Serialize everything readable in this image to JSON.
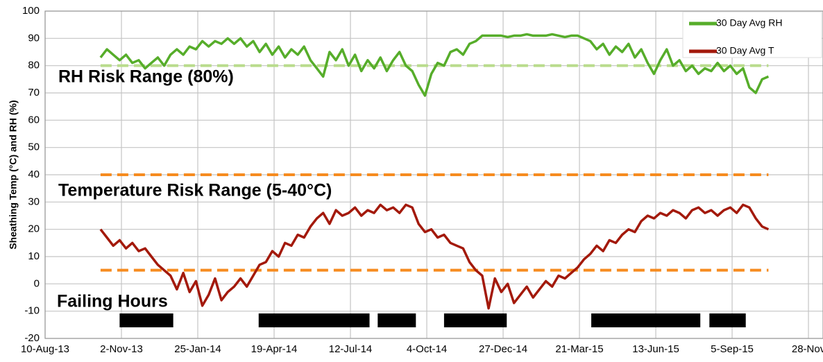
{
  "chart_data": {
    "type": "line",
    "y_label": "Sheathing Temp (°C) and RH (%)",
    "ylim": [
      -20,
      100
    ],
    "yticks": [
      -20,
      -10,
      0,
      10,
      20,
      30,
      40,
      50,
      60,
      70,
      80,
      90,
      100
    ],
    "xlim": [
      "2013-08-10",
      "2015-12-14"
    ],
    "xticks": [
      {
        "value": "2013-08-10",
        "label": "10-Aug-13"
      },
      {
        "value": "2013-11-02",
        "label": "2-Nov-13"
      },
      {
        "value": "2014-01-25",
        "label": "25-Jan-14"
      },
      {
        "value": "2014-04-19",
        "label": "19-Apr-14"
      },
      {
        "value": "2014-07-12",
        "label": "12-Jul-14"
      },
      {
        "value": "2014-10-04",
        "label": "4-Oct-14"
      },
      {
        "value": "2014-12-27",
        "label": "27-Dec-14"
      },
      {
        "value": "2015-03-21",
        "label": "21-Mar-15"
      },
      {
        "value": "2015-06-13",
        "label": "13-Jun-15"
      },
      {
        "value": "2015-09-05",
        "label": "5-Sep-15"
      },
      {
        "value": "2015-11-28",
        "label": "28-Nov"
      }
    ],
    "grid": true,
    "legend": "top-right",
    "x": [
      "2013-10-10",
      "2013-10-17",
      "2013-10-24",
      "2013-10-31",
      "2013-11-07",
      "2013-11-14",
      "2013-11-21",
      "2013-11-28",
      "2013-12-05",
      "2013-12-12",
      "2013-12-19",
      "2013-12-26",
      "2014-01-02",
      "2014-01-09",
      "2014-01-16",
      "2014-01-23",
      "2014-01-30",
      "2014-02-06",
      "2014-02-13",
      "2014-02-20",
      "2014-02-27",
      "2014-03-06",
      "2014-03-13",
      "2014-03-20",
      "2014-03-27",
      "2014-04-03",
      "2014-04-10",
      "2014-04-17",
      "2014-04-24",
      "2014-05-01",
      "2014-05-08",
      "2014-05-15",
      "2014-05-22",
      "2014-05-29",
      "2014-06-05",
      "2014-06-12",
      "2014-06-19",
      "2014-06-26",
      "2014-07-03",
      "2014-07-10",
      "2014-07-17",
      "2014-07-24",
      "2014-07-31",
      "2014-08-07",
      "2014-08-14",
      "2014-08-21",
      "2014-08-28",
      "2014-09-04",
      "2014-09-11",
      "2014-09-18",
      "2014-09-25",
      "2014-10-02",
      "2014-10-09",
      "2014-10-16",
      "2014-10-23",
      "2014-10-30",
      "2014-11-06",
      "2014-11-13",
      "2014-11-20",
      "2014-11-27",
      "2014-12-04",
      "2014-12-11",
      "2014-12-18",
      "2014-12-25",
      "2015-01-01",
      "2015-01-08",
      "2015-01-15",
      "2015-01-22",
      "2015-01-29",
      "2015-02-05",
      "2015-02-12",
      "2015-02-19",
      "2015-02-26",
      "2015-03-05",
      "2015-03-12",
      "2015-03-19",
      "2015-03-26",
      "2015-04-02",
      "2015-04-09",
      "2015-04-16",
      "2015-04-23",
      "2015-04-30",
      "2015-05-07",
      "2015-05-14",
      "2015-05-21",
      "2015-05-28",
      "2015-06-04",
      "2015-06-11",
      "2015-06-18",
      "2015-06-25",
      "2015-07-02",
      "2015-07-09",
      "2015-07-16",
      "2015-07-23",
      "2015-07-30",
      "2015-08-06",
      "2015-08-13",
      "2015-08-20",
      "2015-08-27",
      "2015-09-03",
      "2015-09-10",
      "2015-09-17",
      "2015-09-24",
      "2015-10-01",
      "2015-10-08",
      "2015-10-15"
    ],
    "series": [
      {
        "name": "30 Day Avg RH",
        "color": "#56ad2a",
        "values": [
          83,
          86,
          84,
          82,
          84,
          81,
          82,
          79,
          81,
          83,
          80,
          84,
          86,
          84,
          87,
          86,
          89,
          87,
          89,
          88,
          90,
          88,
          90,
          87,
          89,
          85,
          88,
          84,
          87,
          83,
          86,
          84,
          87,
          82,
          79,
          76,
          85,
          82,
          86,
          80,
          84,
          78,
          82,
          79,
          83,
          78,
          82,
          85,
          80,
          78,
          73,
          69,
          77,
          81,
          80,
          85,
          86,
          84,
          88,
          89,
          91,
          91,
          91,
          91,
          90.5,
          91,
          91,
          91.5,
          91,
          91,
          91,
          91.5,
          91,
          90.5,
          91,
          91,
          90,
          89,
          86,
          88,
          84,
          87,
          85,
          88,
          83,
          86,
          81,
          77,
          82,
          86,
          80,
          82,
          78,
          80,
          77,
          79,
          78,
          81,
          78,
          80,
          77,
          79,
          72,
          70,
          75,
          76
        ]
      },
      {
        "name": "30 Day Avg T",
        "color": "#a3190b",
        "values": [
          20,
          17,
          14,
          16,
          13,
          15,
          12,
          13,
          10,
          7,
          5,
          3,
          -2,
          4,
          -3,
          1,
          -8,
          -4,
          2,
          -6,
          -3,
          -1,
          2,
          -1,
          3,
          7,
          8,
          12,
          10,
          15,
          14,
          18,
          17,
          21,
          24,
          26,
          22,
          27,
          25,
          26,
          28,
          25,
          27,
          26,
          29,
          27,
          28,
          26,
          29,
          28,
          22,
          19,
          20,
          17,
          18,
          15,
          14,
          13,
          8,
          5,
          3,
          -9,
          2,
          -3,
          0,
          -7,
          -4,
          -1,
          -5,
          -2,
          1,
          -1,
          3,
          2,
          4,
          6,
          9,
          11,
          14,
          12,
          16,
          15,
          18,
          20,
          19,
          23,
          25,
          24,
          26,
          25,
          27,
          26,
          24,
          27,
          28,
          26,
          27,
          25,
          27,
          28,
          26,
          29,
          28,
          24,
          21,
          20
        ]
      }
    ],
    "reference_lines": [
      {
        "value": 80,
        "color": "#b9dc8c"
      },
      {
        "value": 40,
        "color": "#f68b1f"
      },
      {
        "value": 5,
        "color": "#f68b1f"
      }
    ],
    "annotations": [
      {
        "text": "RH Risk Range (80%)",
        "color": "#6c9b3c"
      },
      {
        "text": "Temperature Risk Range (5-40°C)",
        "color": "#f0801a"
      },
      {
        "text": "Failing Hours",
        "color": "#000000"
      }
    ],
    "failing_hours": [
      [
        "2013-10-31",
        "2013-12-29"
      ],
      [
        "2014-04-02",
        "2014-08-02"
      ],
      [
        "2014-08-11",
        "2014-09-22"
      ],
      [
        "2014-10-23",
        "2014-12-31"
      ],
      [
        "2015-04-03",
        "2015-08-01"
      ],
      [
        "2015-08-11",
        "2015-09-20"
      ]
    ]
  }
}
